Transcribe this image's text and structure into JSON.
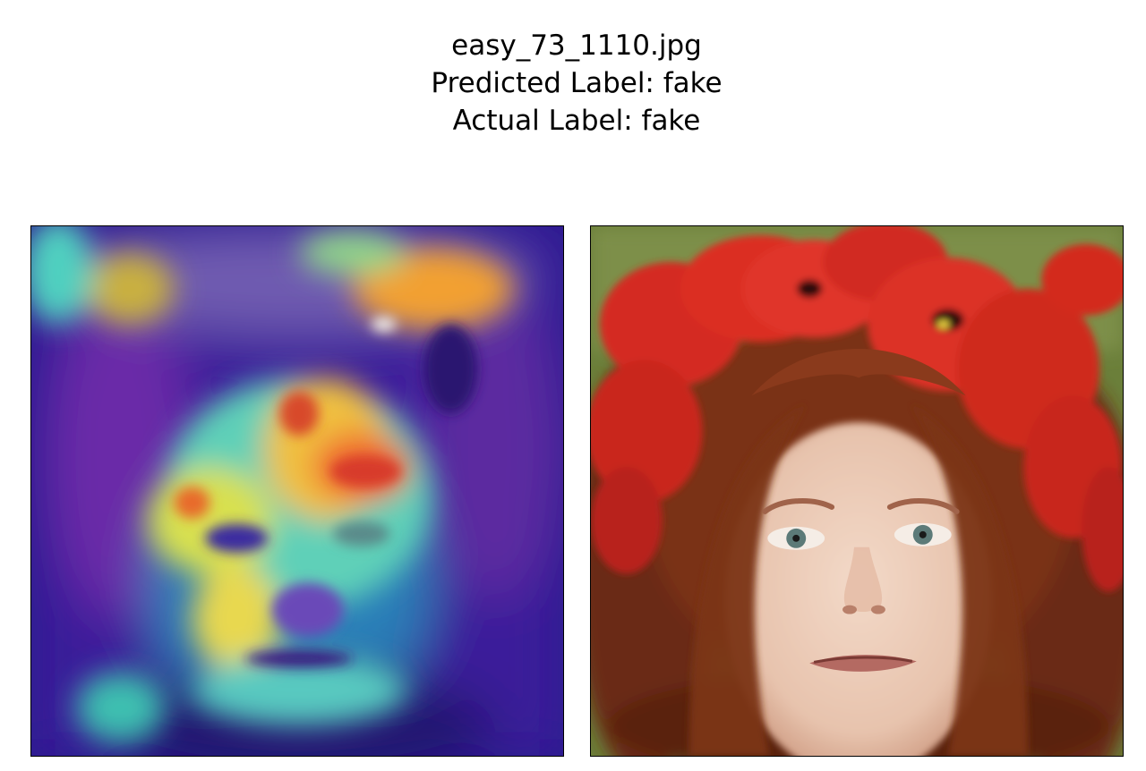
{
  "figure": {
    "title_lines": [
      "easy_73_1110.jpg",
      "Predicted Label: fake",
      "Actual Label: fake"
    ]
  },
  "panels": [
    {
      "content": "heatmap-overlay-image"
    },
    {
      "content": "original-face-image"
    }
  ]
}
